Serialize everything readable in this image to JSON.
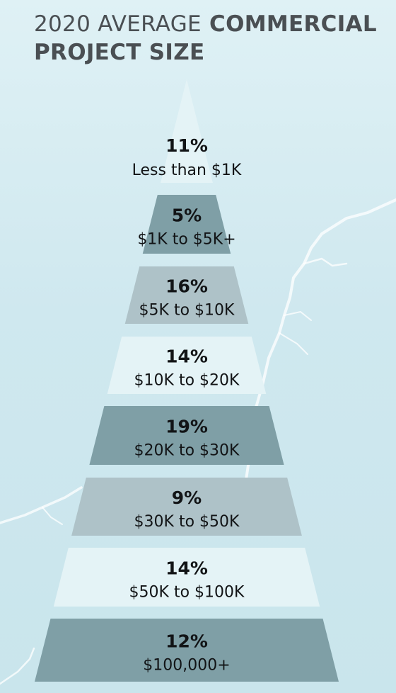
{
  "title": {
    "light": "2020 AVERAGE",
    "bold_line1": "COMMERCIAL",
    "bold_line2": "PROJECT SIZE"
  },
  "colors": {
    "background": "#cfe8ef",
    "tier_light": "#e4f3f6",
    "tier_mid": "#aec2c8",
    "tier_dark": "#7f9fa6",
    "text": "#121416"
  },
  "chart_data": {
    "type": "pyramid",
    "title": "2020 AVERAGE COMMERCIAL PROJECT SIZE",
    "tiers": [
      {
        "category": "Less than $1K",
        "value": 11,
        "label": "11%",
        "shade": "light"
      },
      {
        "category": "$1K to $5K+",
        "value": 5,
        "label": "5%",
        "shade": "dark"
      },
      {
        "category": "$5K to $10K",
        "value": 16,
        "label": "16%",
        "shade": "mid"
      },
      {
        "category": "$10K to $20K",
        "value": 14,
        "label": "14%",
        "shade": "light"
      },
      {
        "category": "$20K to $30K",
        "value": 19,
        "label": "19%",
        "shade": "dark"
      },
      {
        "category": "$30K to $50K",
        "value": 9,
        "label": "9%",
        "shade": "mid"
      },
      {
        "category": "$50K to $100K",
        "value": 14,
        "label": "14%",
        "shade": "light"
      },
      {
        "category": "$100,000+",
        "value": 12,
        "label": "12%",
        "shade": "dark"
      }
    ]
  }
}
